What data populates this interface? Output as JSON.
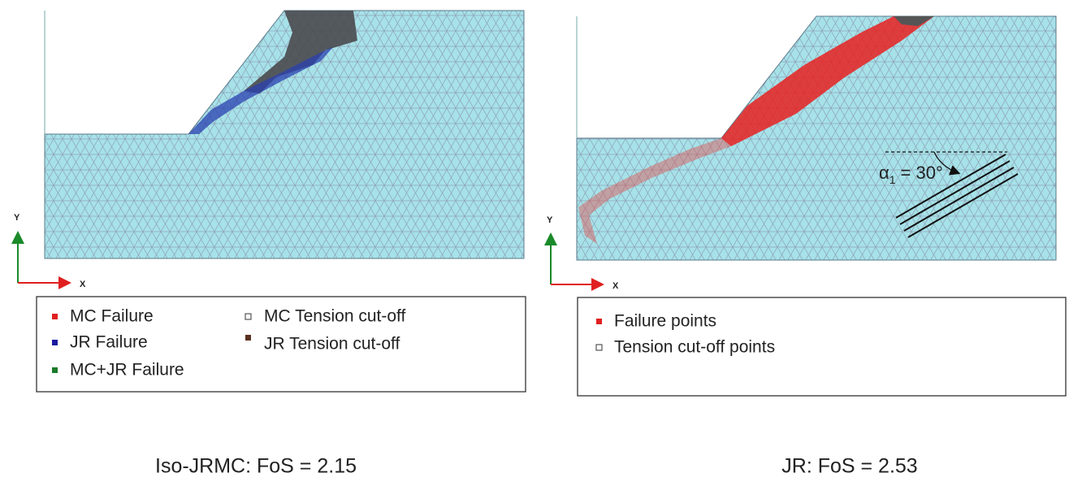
{
  "panels": [
    {
      "axes": {
        "y": "Y",
        "x": "X"
      },
      "legend": [
        "MC Failure",
        "JR Failure",
        "MC+JR Failure",
        "MC Tension cut-off",
        "JR Tension cut-off"
      ],
      "caption": "Iso-JRMC: FoS = 2.15"
    },
    {
      "axes": {
        "y": "Y",
        "x": "X"
      },
      "annotation": {
        "symbol": "α",
        "subscript": "1",
        "text": "= 30°"
      },
      "legend": [
        "Failure points",
        "Tension cut-off points"
      ],
      "caption": "JR: FoS = 2.53"
    }
  ]
}
